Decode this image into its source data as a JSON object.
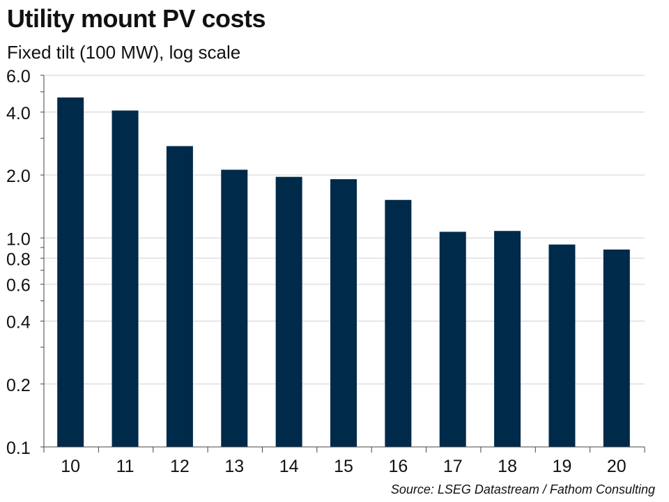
{
  "title": "Utility mount PV costs",
  "subtitle": "Fixed tilt (100 MW), log scale",
  "source": "Source: LSEG Datastream / Fathom Consulting",
  "colors": {
    "bar": "#002a4a",
    "grid": "#d0d0d0",
    "axis": "#444444"
  },
  "chart_data": {
    "type": "bar",
    "title": "Utility mount PV costs",
    "subtitle": "Fixed tilt (100 MW), log scale",
    "xlabel": "",
    "ylabel": "",
    "yscale": "log",
    "ylim": [
      0.1,
      6.0
    ],
    "ytick_values": [
      0.1,
      0.2,
      0.4,
      0.6,
      0.8,
      1.0,
      2.0,
      4.0,
      6.0
    ],
    "ytick_labels": [
      "0.1",
      "0.2",
      "0.4",
      "0.6",
      "0.8",
      "1.0",
      "2.0",
      "4.0",
      "6.0"
    ],
    "grid": true,
    "categories": [
      "10",
      "11",
      "12",
      "13",
      "14",
      "15",
      "16",
      "17",
      "18",
      "19",
      "20"
    ],
    "values": [
      4.7,
      4.07,
      2.75,
      2.12,
      1.96,
      1.91,
      1.52,
      1.07,
      1.08,
      0.93,
      0.88
    ]
  }
}
